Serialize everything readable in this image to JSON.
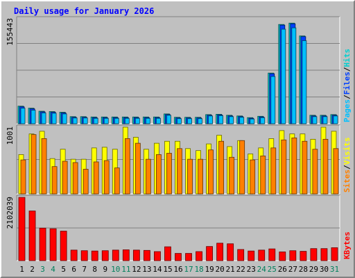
{
  "title": "Daily usage for January 2026",
  "colors": {
    "hits": "#00d0d0",
    "files": "#0040ff",
    "pages": "#00c0ff",
    "visits": "#ffff00",
    "sites": "#ff8000",
    "kbytes": "#ff0000",
    "weekend_label": "#00805c",
    "weekday_label": "#000000"
  },
  "chart_data": [
    {
      "type": "bar",
      "panel": "hits-files-pages",
      "ymax_label": "155443",
      "ylim": [
        0,
        155443
      ],
      "legend": [
        "Pages",
        "/",
        "Files",
        "/",
        "Hits"
      ],
      "categories": [
        "1",
        "2",
        "3",
        "4",
        "5",
        "6",
        "7",
        "8",
        "9",
        "10",
        "11",
        "12",
        "13",
        "14",
        "15",
        "16",
        "17",
        "18",
        "19",
        "20",
        "21",
        "22",
        "23",
        "24",
        "25",
        "26",
        "27",
        "28",
        "29",
        "30",
        "31"
      ],
      "weekend": [
        "3",
        "4",
        "10",
        "11",
        "17",
        "18",
        "24",
        "25",
        "31"
      ],
      "series": [
        {
          "name": "Hits",
          "values": [
            26000,
            23000,
            18500,
            18000,
            17000,
            10500,
            10500,
            10000,
            10000,
            10000,
            10000,
            10000,
            10000,
            10000,
            14500,
            9500,
            9500,
            9500,
            13500,
            14000,
            12500,
            11500,
            9000,
            11000,
            75000,
            147000,
            149000,
            130000,
            12500,
            12500,
            13500
          ]
        },
        {
          "name": "Files",
          "values": [
            25000,
            22000,
            17500,
            17000,
            16000,
            9500,
            9500,
            9000,
            9000,
            9000,
            9000,
            9000,
            9000,
            9000,
            13500,
            8500,
            8500,
            8500,
            12500,
            13000,
            11500,
            10500,
            8000,
            10000,
            74000,
            146000,
            148000,
            129000,
            11500,
            11500,
            12500
          ]
        },
        {
          "name": "Pages",
          "values": [
            23000,
            20000,
            16000,
            15500,
            14500,
            8500,
            8500,
            8000,
            8000,
            8000,
            8000,
            8000,
            8000,
            8000,
            12500,
            7500,
            7500,
            7500,
            11500,
            12000,
            10500,
            9500,
            7000,
            9000,
            70000,
            140000,
            142000,
            123000,
            10500,
            10500,
            11500
          ]
        }
      ]
    },
    {
      "type": "bar",
      "panel": "visits-sites",
      "ymax_label": "1001",
      "ylim": [
        0,
        1001
      ],
      "legend": [
        "Sites",
        "/",
        "Visits"
      ],
      "categories": [
        "1",
        "2",
        "3",
        "4",
        "5",
        "6",
        "7",
        "8",
        "9",
        "10",
        "11",
        "12",
        "13",
        "14",
        "15",
        "16",
        "17",
        "18",
        "19",
        "20",
        "21",
        "22",
        "23",
        "24",
        "25",
        "26",
        "27",
        "28",
        "29",
        "30",
        "31"
      ],
      "series": [
        {
          "name": "Visits",
          "values": [
            590,
            900,
            940,
            530,
            670,
            520,
            520,
            690,
            700,
            670,
            1001,
            850,
            670,
            760,
            790,
            790,
            680,
            650,
            750,
            880,
            710,
            800,
            600,
            690,
            830,
            950,
            900,
            900,
            820,
            1001,
            940
          ]
        },
        {
          "name": "Sites",
          "values": [
            510,
            890,
            830,
            410,
            490,
            470,
            370,
            480,
            500,
            390,
            830,
            760,
            520,
            590,
            610,
            680,
            520,
            520,
            660,
            790,
            550,
            800,
            510,
            570,
            690,
            810,
            840,
            790,
            670,
            820,
            680
          ]
        }
      ]
    },
    {
      "type": "bar",
      "panel": "kbytes",
      "ymax_label": "2102039",
      "ylim": [
        0,
        2102039
      ],
      "legend": [
        "KBytes"
      ],
      "categories": [
        "1",
        "2",
        "3",
        "4",
        "5",
        "6",
        "7",
        "8",
        "9",
        "10",
        "11",
        "12",
        "13",
        "14",
        "15",
        "16",
        "17",
        "18",
        "19",
        "20",
        "21",
        "22",
        "23",
        "24",
        "25",
        "26",
        "27",
        "28",
        "29",
        "30",
        "31"
      ],
      "series": [
        {
          "name": "KBytes",
          "values": [
            2102039,
            1650000,
            1080000,
            1060000,
            980000,
            350000,
            330000,
            320000,
            330000,
            350000,
            360000,
            350000,
            340000,
            300000,
            460000,
            240000,
            240000,
            300000,
            470000,
            580000,
            560000,
            370000,
            320000,
            350000,
            390000,
            290000,
            330000,
            310000,
            400000,
            400000,
            430000
          ]
        }
      ]
    }
  ]
}
